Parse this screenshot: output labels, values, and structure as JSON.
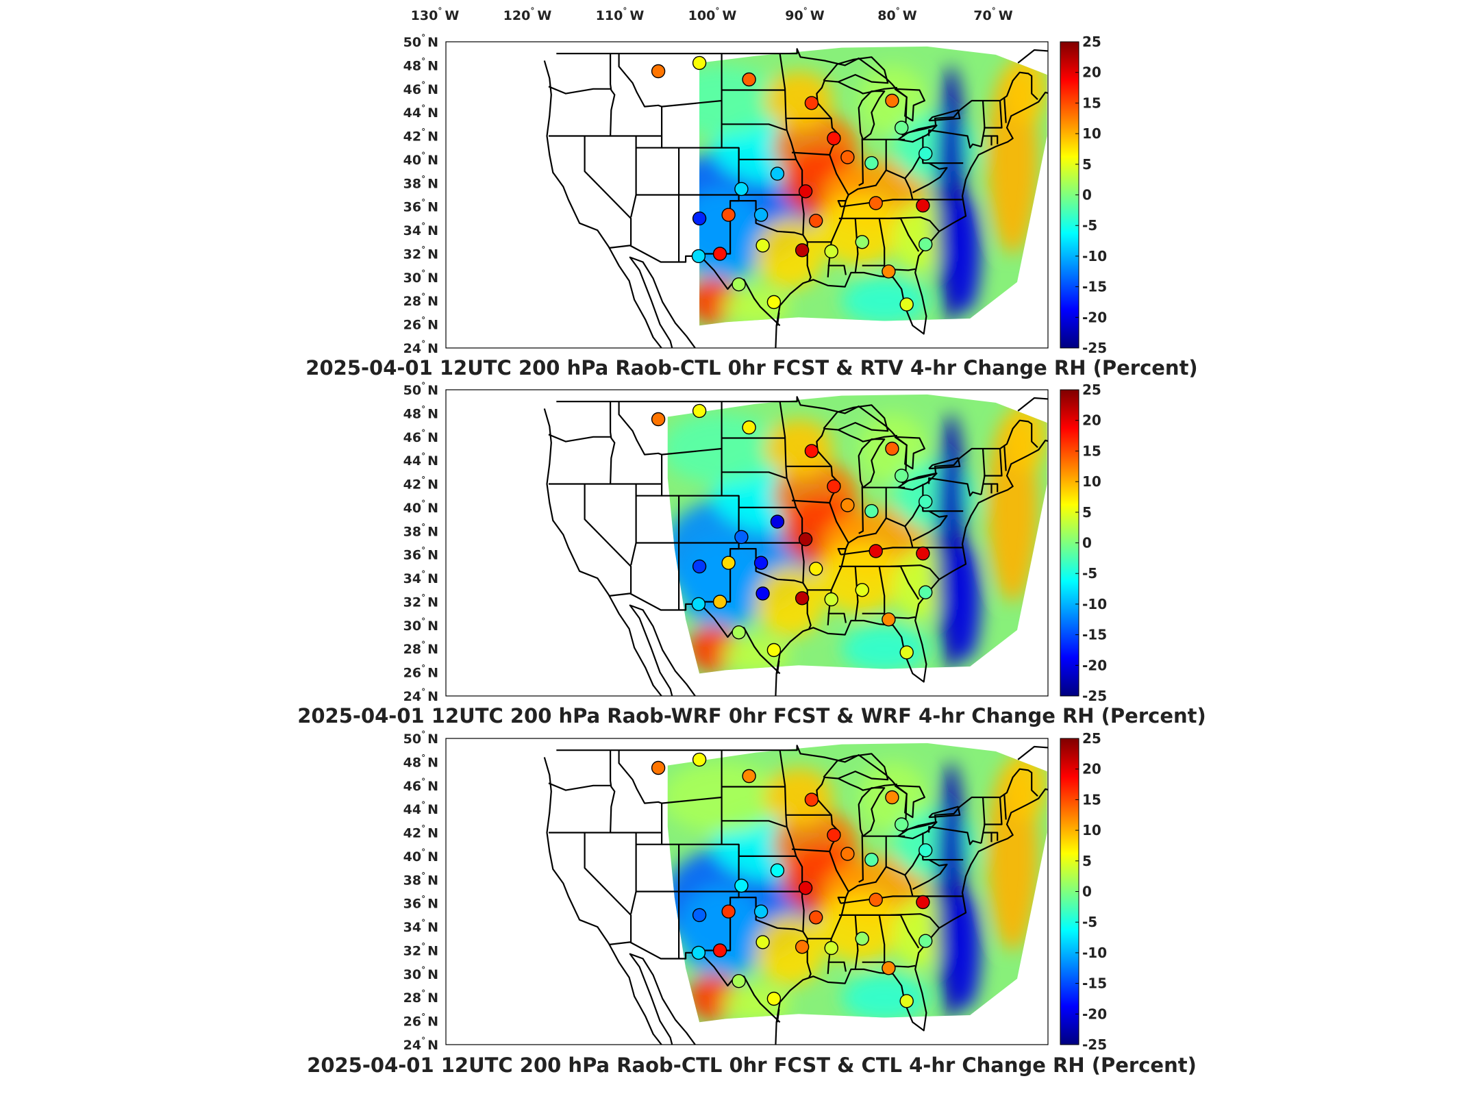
{
  "figure": {
    "longitude_labels": [
      "130",
      "120",
      "110",
      "100",
      "90",
      "80",
      "70"
    ],
    "longitude_suffix": "W",
    "latitude_labels": [
      "50",
      "48",
      "46",
      "44",
      "42",
      "40",
      "38",
      "36",
      "34",
      "32",
      "30",
      "28",
      "26",
      "24"
    ],
    "latitude_suffix": "N",
    "degree_mark": "°",
    "colorbar": {
      "ticks": [
        "25",
        "20",
        "15",
        "10",
        "5",
        "0",
        "-5",
        "-10",
        "-15",
        "-20",
        "-25"
      ],
      "range": [
        -25,
        25
      ],
      "colormap": [
        "#00007f",
        "#0000ff",
        "#007fff",
        "#00ffff",
        "#7fff7f",
        "#ffff00",
        "#ff7f00",
        "#ff0000",
        "#7f0000"
      ]
    }
  },
  "panels": [
    {
      "title": "2025-04-01 12UTC 200 hPa Raob-CTL 0hr FCST & RTV 4-hr Change RH (Percent)",
      "stations": [
        {
          "lon": -111.4,
          "lat": 47.5,
          "value": 13
        },
        {
          "lon": -106.6,
          "lat": 48.2,
          "value": 6
        },
        {
          "lon": -100.8,
          "lat": 46.8,
          "value": 14
        },
        {
          "lon": -93.5,
          "lat": 44.8,
          "value": 16
        },
        {
          "lon": -90.9,
          "lat": 41.8,
          "value": 18
        },
        {
          "lon": -89.3,
          "lat": 40.2,
          "value": 14
        },
        {
          "lon": -84.1,
          "lat": 45.0,
          "value": 13
        },
        {
          "lon": -83.0,
          "lat": 42.7,
          "value": -1
        },
        {
          "lon": -80.2,
          "lat": 40.5,
          "value": -4
        },
        {
          "lon": -86.5,
          "lat": 39.7,
          "value": -2
        },
        {
          "lon": -101.7,
          "lat": 37.5,
          "value": -8
        },
        {
          "lon": -97.5,
          "lat": 38.8,
          "value": -9
        },
        {
          "lon": -94.2,
          "lat": 37.3,
          "value": 20
        },
        {
          "lon": -106.6,
          "lat": 35.0,
          "value": -17
        },
        {
          "lon": -103.2,
          "lat": 35.3,
          "value": 15
        },
        {
          "lon": -99.4,
          "lat": 35.3,
          "value": -10
        },
        {
          "lon": -93.0,
          "lat": 34.8,
          "value": 15
        },
        {
          "lon": -99.2,
          "lat": 32.7,
          "value": 5
        },
        {
          "lon": -94.6,
          "lat": 32.3,
          "value": 22
        },
        {
          "lon": -104.2,
          "lat": 32.0,
          "value": 18
        },
        {
          "lon": -106.7,
          "lat": 31.8,
          "value": -8
        },
        {
          "lon": -91.2,
          "lat": 32.2,
          "value": 4
        },
        {
          "lon": -87.6,
          "lat": 33.0,
          "value": 1
        },
        {
          "lon": -86.0,
          "lat": 36.3,
          "value": 14
        },
        {
          "lon": -80.5,
          "lat": 36.1,
          "value": 20
        },
        {
          "lon": -80.2,
          "lat": 32.8,
          "value": -1
        },
        {
          "lon": -84.5,
          "lat": 30.5,
          "value": 12
        },
        {
          "lon": -102.0,
          "lat": 29.4,
          "value": 2
        },
        {
          "lon": -97.9,
          "lat": 27.9,
          "value": 6
        },
        {
          "lon": -82.4,
          "lat": 27.7,
          "value": 5
        }
      ]
    },
    {
      "title": "2025-04-01 12UTC 200 hPa Raob-WRF 0hr FCST & WRF 4-hr Change RH (Percent)",
      "stations": [
        {
          "lon": -111.4,
          "lat": 47.5,
          "value": 13
        },
        {
          "lon": -106.6,
          "lat": 48.2,
          "value": 6
        },
        {
          "lon": -100.8,
          "lat": 46.8,
          "value": 7
        },
        {
          "lon": -93.5,
          "lat": 44.8,
          "value": 18
        },
        {
          "lon": -90.9,
          "lat": 41.8,
          "value": 17
        },
        {
          "lon": -89.3,
          "lat": 40.2,
          "value": 12
        },
        {
          "lon": -84.1,
          "lat": 45.0,
          "value": 14
        },
        {
          "lon": -83.0,
          "lat": 42.7,
          "value": -1
        },
        {
          "lon": -80.2,
          "lat": 40.5,
          "value": -3
        },
        {
          "lon": -86.5,
          "lat": 39.7,
          "value": -2
        },
        {
          "lon": -101.7,
          "lat": 37.5,
          "value": -14
        },
        {
          "lon": -97.5,
          "lat": 38.8,
          "value": -20
        },
        {
          "lon": -94.2,
          "lat": 37.3,
          "value": 23
        },
        {
          "lon": -106.6,
          "lat": 35.0,
          "value": -16
        },
        {
          "lon": -103.2,
          "lat": 35.3,
          "value": 8
        },
        {
          "lon": -99.4,
          "lat": 35.3,
          "value": -18
        },
        {
          "lon": -93.0,
          "lat": 34.8,
          "value": 7
        },
        {
          "lon": -99.2,
          "lat": 32.7,
          "value": -19
        },
        {
          "lon": -94.6,
          "lat": 32.3,
          "value": 22
        },
        {
          "lon": -104.2,
          "lat": 32.0,
          "value": 9
        },
        {
          "lon": -106.7,
          "lat": 31.8,
          "value": -8
        },
        {
          "lon": -91.2,
          "lat": 32.2,
          "value": 4
        },
        {
          "lon": -87.6,
          "lat": 33.0,
          "value": 5
        },
        {
          "lon": -86.0,
          "lat": 36.3,
          "value": 20
        },
        {
          "lon": -80.5,
          "lat": 36.1,
          "value": 20
        },
        {
          "lon": -80.2,
          "lat": 32.8,
          "value": -2
        },
        {
          "lon": -84.5,
          "lat": 30.5,
          "value": 12
        },
        {
          "lon": -102.0,
          "lat": 29.4,
          "value": 2
        },
        {
          "lon": -97.9,
          "lat": 27.9,
          "value": 6
        },
        {
          "lon": -82.4,
          "lat": 27.7,
          "value": 5
        }
      ]
    },
    {
      "title": "2025-04-01 12UTC 200 hPa Raob-CTL 0hr FCST & CTL 4-hr Change RH (Percent)",
      "stations": [
        {
          "lon": -111.4,
          "lat": 47.5,
          "value": 13
        },
        {
          "lon": -106.6,
          "lat": 48.2,
          "value": 6
        },
        {
          "lon": -100.8,
          "lat": 46.8,
          "value": 12
        },
        {
          "lon": -93.5,
          "lat": 44.8,
          "value": 16
        },
        {
          "lon": -90.9,
          "lat": 41.8,
          "value": 17
        },
        {
          "lon": -89.3,
          "lat": 40.2,
          "value": 13
        },
        {
          "lon": -84.1,
          "lat": 45.0,
          "value": 12
        },
        {
          "lon": -83.0,
          "lat": 42.7,
          "value": -1
        },
        {
          "lon": -80.2,
          "lat": 40.5,
          "value": -4
        },
        {
          "lon": -86.5,
          "lat": 39.7,
          "value": -2
        },
        {
          "lon": -101.7,
          "lat": 37.5,
          "value": -7
        },
        {
          "lon": -97.5,
          "lat": 38.8,
          "value": -6
        },
        {
          "lon": -94.2,
          "lat": 37.3,
          "value": 20
        },
        {
          "lon": -106.6,
          "lat": 35.0,
          "value": -14
        },
        {
          "lon": -103.2,
          "lat": 35.3,
          "value": 16
        },
        {
          "lon": -99.4,
          "lat": 35.3,
          "value": -9
        },
        {
          "lon": -93.0,
          "lat": 34.8,
          "value": 15
        },
        {
          "lon": -99.2,
          "lat": 32.7,
          "value": 5
        },
        {
          "lon": -94.6,
          "lat": 32.3,
          "value": 13
        },
        {
          "lon": -104.2,
          "lat": 32.0,
          "value": 18
        },
        {
          "lon": -106.7,
          "lat": 31.8,
          "value": -8
        },
        {
          "lon": -91.2,
          "lat": 32.2,
          "value": 4
        },
        {
          "lon": -87.6,
          "lat": 33.0,
          "value": 1
        },
        {
          "lon": -86.0,
          "lat": 36.3,
          "value": 14
        },
        {
          "lon": -80.5,
          "lat": 36.1,
          "value": 20
        },
        {
          "lon": -80.2,
          "lat": 32.8,
          "value": -1
        },
        {
          "lon": -84.5,
          "lat": 30.5,
          "value": 12
        },
        {
          "lon": -102.0,
          "lat": 29.4,
          "value": 2
        },
        {
          "lon": -97.9,
          "lat": 27.9,
          "value": 6
        },
        {
          "lon": -82.4,
          "lat": 27.7,
          "value": 5
        }
      ]
    }
  ]
}
